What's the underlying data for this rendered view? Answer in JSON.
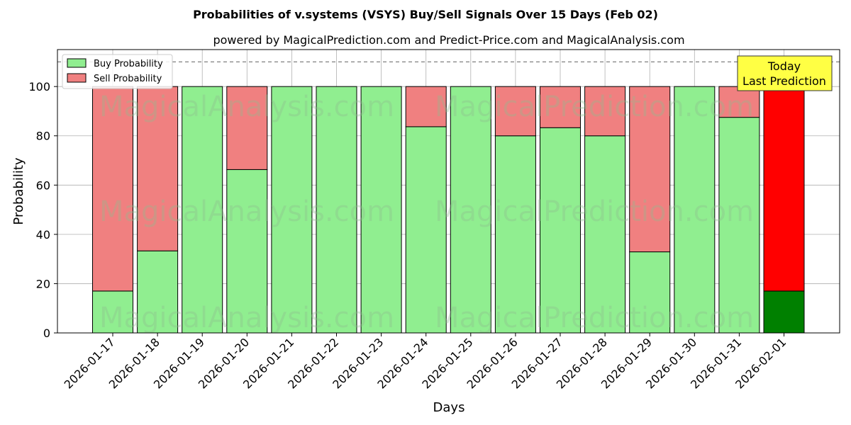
{
  "chart_data": {
    "type": "bar",
    "title": "Probabilities of v.systems (VSYS) Buy/Sell Signals Over 15 Days (Feb 02)",
    "subtitle": "powered by MagicalPrediction.com and Predict-Price.com and MagicalAnalysis.com",
    "xlabel": "Days",
    "ylabel": "Probability",
    "ylim": [
      0,
      115
    ],
    "yticks": [
      0,
      20,
      40,
      60,
      80,
      100
    ],
    "reference_line": 110,
    "grid": true,
    "legend_position": "top-left",
    "stacked": true,
    "categories": [
      "2026-01-17",
      "2026-01-18",
      "2026-01-19",
      "2026-01-20",
      "2026-01-21",
      "2026-01-22",
      "2026-01-23",
      "2026-01-24",
      "2026-01-25",
      "2026-01-26",
      "2026-01-27",
      "2026-01-28",
      "2026-01-29",
      "2026-01-30",
      "2026-01-31",
      "2026-02-01"
    ],
    "series": [
      {
        "name": "Buy Probability",
        "color": "#90ee90",
        "values": [
          17,
          33.3,
          100,
          66.3,
          100,
          100,
          100,
          83.7,
          100,
          80,
          83.3,
          80,
          32.9,
          100,
          87.5,
          17
        ]
      },
      {
        "name": "Sell Probability",
        "color": "#f08080",
        "values": [
          83,
          66.7,
          0,
          33.7,
          0,
          0,
          0,
          16.3,
          0,
          20,
          16.7,
          20,
          67.1,
          0,
          12.5,
          83
        ]
      }
    ],
    "highlight": {
      "index": 15,
      "buy_color": "#008000",
      "sell_color": "#ff0000"
    },
    "annotation": {
      "line1": "Today",
      "line2": "Last Prediction",
      "color": "#ffff44"
    },
    "watermarks": [
      "MagicalAnalysis.com",
      "MagicalPrediction.com"
    ]
  }
}
